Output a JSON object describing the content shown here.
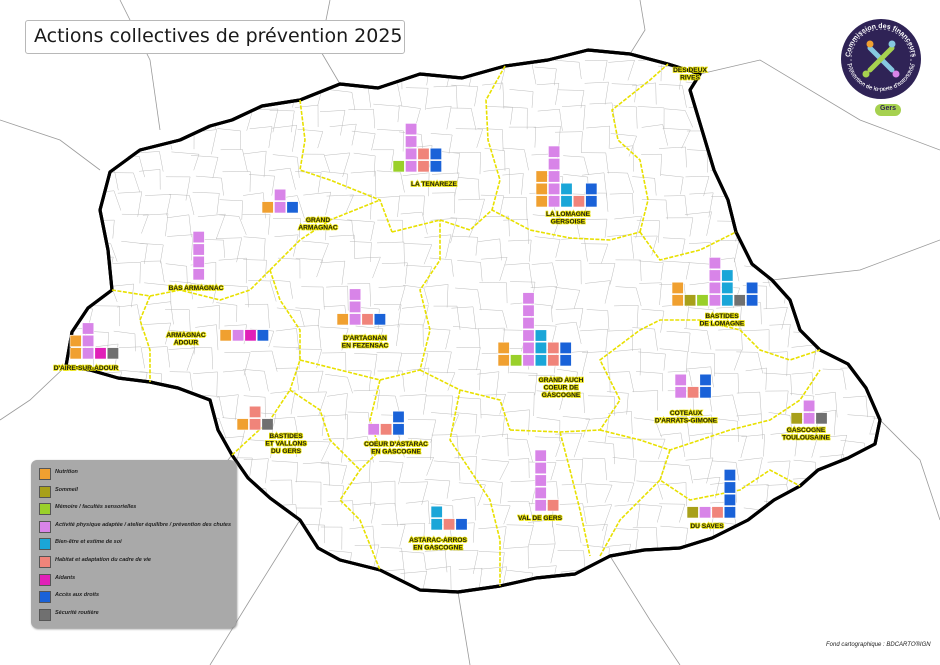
{
  "title": "Actions collectives de prévention 2025",
  "colors": {
    "nutrition": "#f0a030",
    "sommeil": "#a8a01a",
    "memoire": "#9ad02a",
    "activite": "#d884e8",
    "bien_etre": "#1aa6d8",
    "habitat": "#f0847a",
    "aidants": "#e020b8",
    "acces_droits": "#1a62d8",
    "securite": "#707070",
    "boundary_zone": "#e8e000",
    "boundary_dept": "#000000"
  },
  "legend": {
    "items": [
      {
        "key": "nutrition",
        "label": "Nutrition"
      },
      {
        "key": "sommeil",
        "label": "Sommeil"
      },
      {
        "key": "memoire",
        "label": "Mémoire / facultés sensorielles"
      },
      {
        "key": "activite",
        "label": "Activité physique adaptée / atelier équilibre / prévention des chutes"
      },
      {
        "key": "bien_etre",
        "label": "Bien-être et estime de soi"
      },
      {
        "key": "habitat",
        "label": "Habitat et adaptation du cadre de vie"
      },
      {
        "key": "aidants",
        "label": "Aidants"
      },
      {
        "key": "acces_droits",
        "label": "Accès aux droits"
      },
      {
        "key": "securite",
        "label": "Sécurité routière"
      }
    ]
  },
  "logo": {
    "text_top": "Commission des financeurs",
    "text_bottom": "Prévention de la perte d'autonomie",
    "badge": "Gers",
    "icon": "people-ring-icon"
  },
  "credit": "Fond cartographique : BDCARTO®IGN",
  "territories": [
    {
      "name": "LA TENAREZE",
      "counts": {
        "memoire": 1,
        "activite": 4,
        "habitat": 2,
        "acces_droits": 2
      }
    },
    {
      "name": "LA LOMAGNE GERSOISE",
      "counts": {
        "nutrition": 3,
        "activite": 5,
        "bien_etre": 2,
        "habitat": 1,
        "acces_droits": 2
      }
    },
    {
      "name": "DES DEUX RIVES",
      "counts": {}
    },
    {
      "name": "GRAND ARMAGNAC",
      "counts": {
        "nutrition": 1,
        "activite": 2,
        "acces_droits": 1
      }
    },
    {
      "name": "BAS ARMAGNAC",
      "counts": {
        "activite": 4
      }
    },
    {
      "name": "ARMAGNAC ADOUR",
      "counts": {
        "nutrition": 1,
        "activite": 1,
        "aidants": 1,
        "acces_droits": 1
      }
    },
    {
      "name": "D'AIRE-SUR-ADOUR",
      "counts": {
        "nutrition": 2,
        "activite": 3,
        "aidants": 1,
        "securite": 1
      }
    },
    {
      "name": "D'ARTAGNAN EN FEZENSAC",
      "counts": {
        "nutrition": 1,
        "activite": 3,
        "habitat": 1,
        "acces_droits": 1
      }
    },
    {
      "name": "GRAND AUCH COEUR DE GASCOGNE",
      "counts": {
        "nutrition": 2,
        "memoire": 1,
        "activite": 6,
        "bien_etre": 3,
        "habitat": 2,
        "acces_droits": 2
      }
    },
    {
      "name": "BASTIDES DE LOMAGNE",
      "counts": {
        "nutrition": 2,
        "sommeil": 1,
        "memoire": 1,
        "activite": 4,
        "bien_etre": 3,
        "securite": 1,
        "acces_droits": 2
      }
    },
    {
      "name": "BASTIDES ET VALLONS DU GERS",
      "counts": {
        "nutrition": 1,
        "habitat": 2,
        "securite": 1
      }
    },
    {
      "name": "COEUR D'ASTARAC EN GASCOGNE",
      "counts": {
        "activite": 1,
        "habitat": 1,
        "acces_droits": 2
      }
    },
    {
      "name": "COTEAUX D'ARRATS-GIMONE",
      "counts": {
        "activite": 2,
        "habitat": 1,
        "acces_droits": 2
      }
    },
    {
      "name": "GASCOGNE TOULOUSAINE",
      "counts": {
        "sommeil": 1,
        "activite": 2,
        "securite": 1
      }
    },
    {
      "name": "VAL DE GERS",
      "counts": {
        "activite": 5,
        "habitat": 1
      }
    },
    {
      "name": "ASTARAC-ARROS EN GASCOGNE",
      "counts": {
        "bien_etre": 2,
        "habitat": 1,
        "acces_droits": 1
      }
    },
    {
      "name": "DU SAVES",
      "counts": {
        "sommeil": 1,
        "activite": 1,
        "habitat": 1,
        "acces_droits": 4
      }
    }
  ]
}
